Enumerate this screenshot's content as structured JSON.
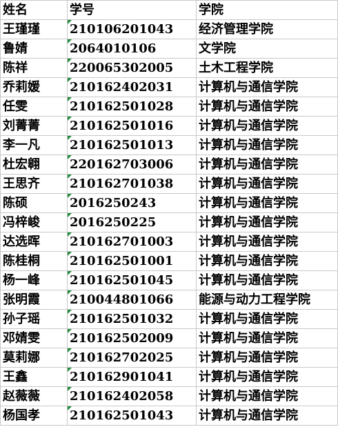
{
  "table": {
    "header": [
      "姓名",
      "学号",
      "学院"
    ],
    "rows": [
      [
        "王瑾瑾",
        "210106201043",
        "经济管理学院"
      ],
      [
        "鲁婧",
        "2064010106",
        "文学院"
      ],
      [
        "陈祥",
        "220065302005",
        "土木工程学院"
      ],
      [
        "乔莉媛",
        "210162402031",
        "计算机与通信学院"
      ],
      [
        "任雯",
        "210162501028",
        "计算机与通信学院"
      ],
      [
        "刘菁菁",
        "210162501016",
        "计算机与通信学院"
      ],
      [
        "李一凡",
        "210162501013",
        "计算机与通信学院"
      ],
      [
        "杜宏翱",
        "220162703006",
        "计算机与通信学院"
      ],
      [
        "王思齐",
        "210162701038",
        "计算机与通信学院"
      ],
      [
        "陈硕",
        "2016250243",
        "计算机与通信学院"
      ],
      [
        "冯梓峻",
        "2016250225",
        "计算机与通信学院"
      ],
      [
        "达选晖",
        "210162701003",
        "计算机与通信学院"
      ],
      [
        "陈桂桐",
        "210162501001",
        "计算机与通信学院"
      ],
      [
        "杨一峰",
        "210162501045",
        "计算机与通信学院"
      ],
      [
        "张明霞",
        "210044801066",
        "能源与动力工程学院"
      ],
      [
        "孙子瑶",
        "210162501032",
        "计算机与通信学院"
      ],
      [
        "邓婧雯",
        "210162502009",
        "计算机与通信学院"
      ],
      [
        "莫莉娜",
        "210162702025",
        "计算机与通信学院"
      ],
      [
        "王鑫",
        "210162901041",
        "计算机与通信学院"
      ],
      [
        "赵薇薇",
        "210162402058",
        "计算机与通信学院"
      ],
      [
        "杨国孝",
        "210162501043",
        "计算机与通信学院"
      ]
    ]
  }
}
